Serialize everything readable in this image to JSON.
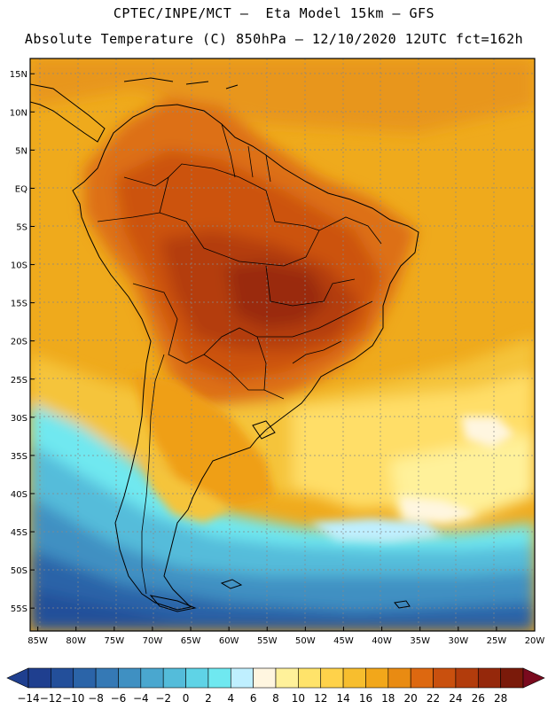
{
  "header": {
    "line1": "CPTEC/INPE/MCT –  Eta Model 15km – GFS",
    "line2": "Absolute Temperature (C) 850hPa – 12/10/2020 12UTC fct=162h"
  },
  "map": {
    "lon_range": [
      -86,
      -20
    ],
    "lat_range": [
      -58,
      17
    ],
    "lat_ticks": [
      {
        "lat": 15,
        "label": "15N"
      },
      {
        "lat": 10,
        "label": "10N"
      },
      {
        "lat": 5,
        "label": "5N"
      },
      {
        "lat": 0,
        "label": "EQ"
      },
      {
        "lat": -5,
        "label": "5S"
      },
      {
        "lat": -10,
        "label": "10S"
      },
      {
        "lat": -15,
        "label": "15S"
      },
      {
        "lat": -20,
        "label": "20S"
      },
      {
        "lat": -25,
        "label": "25S"
      },
      {
        "lat": -30,
        "label": "30S"
      },
      {
        "lat": -35,
        "label": "35S"
      },
      {
        "lat": -40,
        "label": "40S"
      },
      {
        "lat": -45,
        "label": "45S"
      },
      {
        "lat": -50,
        "label": "50S"
      },
      {
        "lat": -55,
        "label": "55S"
      }
    ],
    "lon_ticks": [
      {
        "lon": -85,
        "label": "85W"
      },
      {
        "lon": -80,
        "label": "80W"
      },
      {
        "lon": -75,
        "label": "75W"
      },
      {
        "lon": -70,
        "label": "70W"
      },
      {
        "lon": -65,
        "label": "65W"
      },
      {
        "lon": -60,
        "label": "60W"
      },
      {
        "lon": -55,
        "label": "55W"
      },
      {
        "lon": -50,
        "label": "50W"
      },
      {
        "lon": -45,
        "label": "45W"
      },
      {
        "lon": -40,
        "label": "40W"
      },
      {
        "lon": -35,
        "label": "35W"
      },
      {
        "lon": -30,
        "label": "30W"
      },
      {
        "lon": -25,
        "label": "25W"
      },
      {
        "lon": -20,
        "label": "20W"
      }
    ]
  },
  "colorbar": {
    "labels": [
      "-14",
      "-12",
      "-10",
      "-8",
      "-6",
      "-4",
      "-2",
      "0",
      "2",
      "4",
      "6",
      "8",
      "10",
      "12",
      "14",
      "16",
      "18",
      "20",
      "22",
      "24",
      "26",
      "28"
    ],
    "colors": [
      "#1f3f8f",
      "#234f9a",
      "#2b64a8",
      "#3579b5",
      "#3f90c2",
      "#4aa7cf",
      "#54bcda",
      "#5fd3e6",
      "#6fe8f0",
      "#bfefff",
      "#fff6e0",
      "#fff19a",
      "#ffe36a",
      "#ffd24a",
      "#f7be2e",
      "#f2a71a",
      "#e98b12",
      "#dd6810",
      "#c9500e",
      "#b23c0c",
      "#95280b",
      "#7a1a0a"
    ]
  }
}
